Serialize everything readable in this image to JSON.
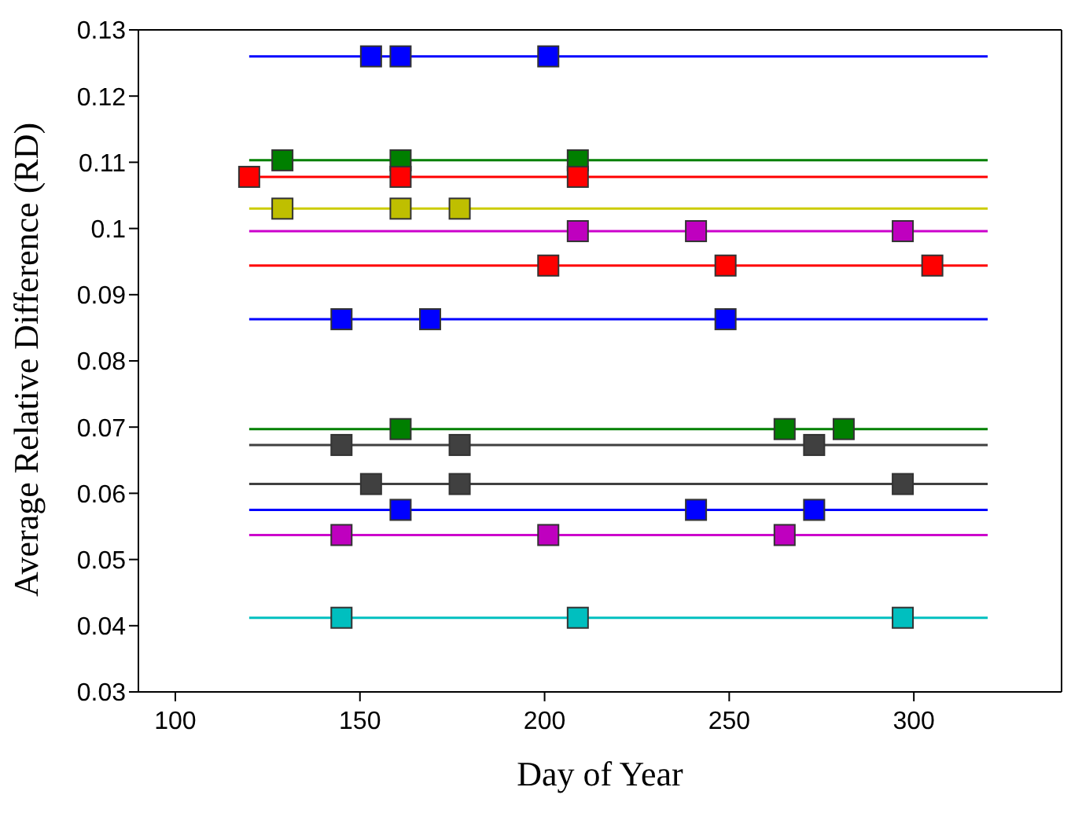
{
  "chart_data": {
    "type": "scatter",
    "xlabel": "Day of Year",
    "ylabel": "Average Relative Difference (RD)",
    "xlim": [
      90,
      340
    ],
    "xticks": [
      100,
      150,
      200,
      250,
      300
    ],
    "ylim": [
      0.03,
      0.13
    ],
    "yticks": [
      0.03,
      0.04,
      0.05,
      0.06,
      0.07,
      0.08,
      0.09,
      0.1,
      0.11,
      0.12,
      0.13
    ],
    "grid": false,
    "marker": "square",
    "series": [
      {
        "type": "line",
        "marker": "none",
        "color": "#0000ff",
        "x": [
          120,
          320
        ],
        "values": [
          0.126,
          0.126
        ]
      },
      {
        "color": "#0000ff",
        "x": [
          153,
          161,
          201
        ],
        "values": [
          0.126,
          0.126,
          0.126
        ]
      },
      {
        "type": "line",
        "marker": "none",
        "color": "#008000",
        "x": [
          120,
          320
        ],
        "values": [
          0.1103,
          0.1103
        ]
      },
      {
        "color": "#007f00",
        "x": [
          129,
          161,
          209
        ],
        "values": [
          0.1103,
          0.1103,
          0.1103
        ]
      },
      {
        "type": "line",
        "marker": "none",
        "color": "#ff0000",
        "x": [
          120,
          320
        ],
        "values": [
          0.1078,
          0.1078
        ]
      },
      {
        "color": "#ff0000",
        "x": [
          120,
          161,
          209
        ],
        "values": [
          0.1078,
          0.1078,
          0.1078
        ]
      },
      {
        "type": "line",
        "marker": "none",
        "color": "#cccc00",
        "x": [
          120,
          320
        ],
        "values": [
          0.103,
          0.103
        ]
      },
      {
        "color": "#bfbf00",
        "x": [
          129,
          161,
          177
        ],
        "values": [
          0.103,
          0.103,
          0.103
        ]
      },
      {
        "type": "line",
        "marker": "none",
        "color": "#cc00cc",
        "x": [
          120,
          320
        ],
        "values": [
          0.0996,
          0.0996
        ]
      },
      {
        "color": "#bf00bf",
        "x": [
          209,
          241,
          297
        ],
        "values": [
          0.0996,
          0.0996,
          0.0996
        ]
      },
      {
        "type": "line",
        "marker": "none",
        "color": "#ff0000",
        "x": [
          120,
          320
        ],
        "values": [
          0.0944,
          0.0944
        ]
      },
      {
        "color": "#ff0000",
        "x": [
          201,
          249,
          305
        ],
        "values": [
          0.0944,
          0.0944,
          0.0944
        ]
      },
      {
        "type": "line",
        "marker": "none",
        "color": "#0000ff",
        "x": [
          120,
          320
        ],
        "values": [
          0.0863,
          0.0863
        ]
      },
      {
        "color": "#0000ff",
        "x": [
          145,
          169,
          249
        ],
        "values": [
          0.0863,
          0.0863,
          0.0863
        ]
      },
      {
        "type": "line",
        "marker": "none",
        "color": "#008000",
        "x": [
          120,
          320
        ],
        "values": [
          0.0697,
          0.0697
        ]
      },
      {
        "color": "#007f00",
        "x": [
          161,
          265,
          281
        ],
        "values": [
          0.0697,
          0.0697,
          0.0697
        ]
      },
      {
        "type": "line",
        "marker": "none",
        "color": "#404040",
        "x": [
          120,
          320
        ],
        "values": [
          0.0673,
          0.0673
        ]
      },
      {
        "color": "#404040",
        "x": [
          145,
          177,
          273
        ],
        "values": [
          0.0673,
          0.0673,
          0.0673
        ]
      },
      {
        "type": "line",
        "marker": "none",
        "color": "#404040",
        "x": [
          120,
          320
        ],
        "values": [
          0.0614,
          0.0614
        ]
      },
      {
        "color": "#404040",
        "x": [
          153,
          177,
          297
        ],
        "values": [
          0.0614,
          0.0614,
          0.0614
        ]
      },
      {
        "type": "line",
        "marker": "none",
        "color": "#0000ff",
        "x": [
          120,
          320
        ],
        "values": [
          0.0575,
          0.0575
        ]
      },
      {
        "color": "#0000ff",
        "x": [
          161,
          241,
          273
        ],
        "values": [
          0.0575,
          0.0575,
          0.0575
        ]
      },
      {
        "type": "line",
        "marker": "none",
        "color": "#cc00cc",
        "x": [
          120,
          320
        ],
        "values": [
          0.0537,
          0.0537
        ]
      },
      {
        "color": "#bf00bf",
        "x": [
          145,
          201,
          265
        ],
        "values": [
          0.0537,
          0.0537,
          0.0537
        ]
      },
      {
        "type": "line",
        "marker": "none",
        "color": "#00c0c0",
        "x": [
          120,
          320
        ],
        "values": [
          0.0412,
          0.0412
        ]
      },
      {
        "color": "#00bfbf",
        "x": [
          145,
          209,
          297
        ],
        "values": [
          0.0412,
          0.0412,
          0.0412
        ]
      }
    ]
  }
}
